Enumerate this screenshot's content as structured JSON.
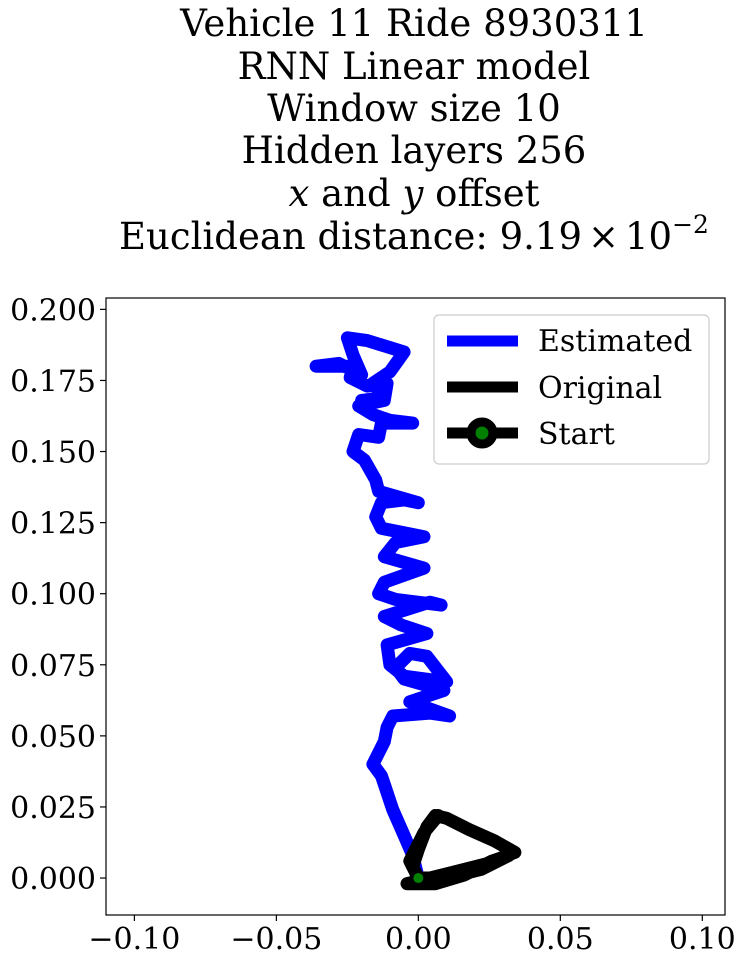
{
  "chart_data": {
    "type": "line",
    "title_lines": [
      "Vehicle 11 Ride 8930311",
      "RNN Linear model",
      "Window size 10",
      "Hidden layers 256",
      "x and y offset",
      "Euclidean distance: 9.19×10⁻²"
    ],
    "title_parts": {
      "offset_x": "x",
      "offset_and": " and ",
      "offset_y": "y",
      "offset_rest": " offset",
      "dist_prefix": "Euclidean distance: 9.19",
      "dist_times": "×",
      "dist_base": "10",
      "dist_exp": "−2"
    },
    "xlabel": "",
    "ylabel": "",
    "xlim": [
      -0.11,
      0.108
    ],
    "ylim": [
      -0.013,
      0.204
    ],
    "xticks": [
      -0.1,
      -0.05,
      0.0,
      0.05,
      0.1
    ],
    "xtick_labels": [
      "−0.10",
      "−0.05",
      "0.00",
      "0.05",
      "0.10"
    ],
    "yticks": [
      0.0,
      0.025,
      0.05,
      0.075,
      0.1,
      0.125,
      0.15,
      0.175,
      0.2
    ],
    "ytick_labels": [
      "0.000",
      "0.025",
      "0.050",
      "0.075",
      "0.100",
      "0.125",
      "0.150",
      "0.175",
      "0.200"
    ],
    "grid": false,
    "legend_position": "top-right",
    "series": [
      {
        "name": "Estimated",
        "color": "#0000ff",
        "points": [
          [
            0.0,
            0.0
          ],
          [
            -0.002,
            0.008
          ],
          [
            -0.005,
            0.015
          ],
          [
            -0.009,
            0.024
          ],
          [
            -0.011,
            0.03
          ],
          [
            -0.013,
            0.036
          ],
          [
            -0.016,
            0.04
          ],
          [
            -0.014,
            0.044
          ],
          [
            -0.012,
            0.048
          ],
          [
            -0.011,
            0.053
          ],
          [
            -0.009,
            0.057
          ],
          [
            0.004,
            0.058
          ],
          [
            0.011,
            0.057
          ],
          [
            -0.003,
            0.062
          ],
          [
            0.009,
            0.066
          ],
          [
            -0.005,
            0.07
          ],
          [
            -0.008,
            0.074
          ],
          [
            -0.003,
            0.079
          ],
          [
            0.003,
            0.078
          ],
          [
            0.01,
            0.069
          ],
          [
            -0.005,
            0.071
          ],
          [
            -0.01,
            0.075
          ],
          [
            -0.011,
            0.082
          ],
          [
            0.003,
            0.086
          ],
          [
            -0.006,
            0.089
          ],
          [
            -0.012,
            0.092
          ],
          [
            0.004,
            0.097
          ],
          [
            0.008,
            0.096
          ],
          [
            -0.008,
            0.098
          ],
          [
            -0.014,
            0.1
          ],
          [
            -0.012,
            0.104
          ],
          [
            0.002,
            0.109
          ],
          [
            -0.012,
            0.113
          ],
          [
            -0.008,
            0.118
          ],
          [
            0.002,
            0.12
          ],
          [
            -0.013,
            0.123
          ],
          [
            -0.015,
            0.127
          ],
          [
            -0.013,
            0.132
          ],
          [
            -0.005,
            0.133
          ],
          [
            0.0,
            0.132
          ],
          [
            -0.014,
            0.136
          ],
          [
            -0.015,
            0.14
          ],
          [
            -0.019,
            0.147
          ],
          [
            -0.023,
            0.15
          ],
          [
            -0.021,
            0.156
          ],
          [
            -0.014,
            0.155
          ],
          [
            -0.013,
            0.16
          ],
          [
            -0.002,
            0.16
          ],
          [
            -0.01,
            0.161
          ],
          [
            -0.016,
            0.163
          ],
          [
            -0.021,
            0.166
          ],
          [
            -0.012,
            0.168
          ],
          [
            -0.011,
            0.174
          ],
          [
            -0.018,
            0.173
          ],
          [
            -0.024,
            0.176
          ],
          [
            -0.023,
            0.18
          ],
          [
            -0.036,
            0.18
          ],
          [
            -0.028,
            0.181
          ],
          [
            -0.02,
            0.177
          ],
          [
            -0.023,
            0.184
          ],
          [
            -0.025,
            0.19
          ],
          [
            -0.018,
            0.189
          ],
          [
            -0.005,
            0.185
          ],
          [
            -0.01,
            0.178
          ],
          [
            -0.016,
            0.174
          ],
          [
            -0.012,
            0.169
          ],
          [
            -0.02,
            0.168
          ]
        ]
      },
      {
        "name": "Original",
        "color": "#000000",
        "points": [
          [
            0.0,
            0.0
          ],
          [
            -0.002,
            0.004
          ],
          [
            0.0,
            0.01
          ],
          [
            0.003,
            0.018
          ],
          [
            0.006,
            0.022
          ],
          [
            0.01,
            0.021
          ],
          [
            0.018,
            0.017
          ],
          [
            0.027,
            0.013
          ],
          [
            0.034,
            0.009
          ],
          [
            0.024,
            0.005
          ],
          [
            0.012,
            0.002
          ],
          [
            0.004,
            0.0
          ],
          [
            -0.004,
            -0.002
          ],
          [
            0.006,
            -0.002
          ],
          [
            0.016,
            0.001
          ],
          [
            0.026,
            0.006
          ],
          [
            0.032,
            0.008
          ],
          [
            0.022,
            0.003
          ],
          [
            0.01,
            0.0
          ],
          [
            0.0,
            0.0
          ],
          [
            -0.003,
            0.006
          ],
          [
            0.002,
            0.016
          ],
          [
            0.007,
            0.022
          ]
        ]
      }
    ],
    "start_marker": {
      "name": "Start",
      "x": 0.0,
      "y": 0.0,
      "face_color": "#008000",
      "edge_color": "#000000"
    }
  }
}
